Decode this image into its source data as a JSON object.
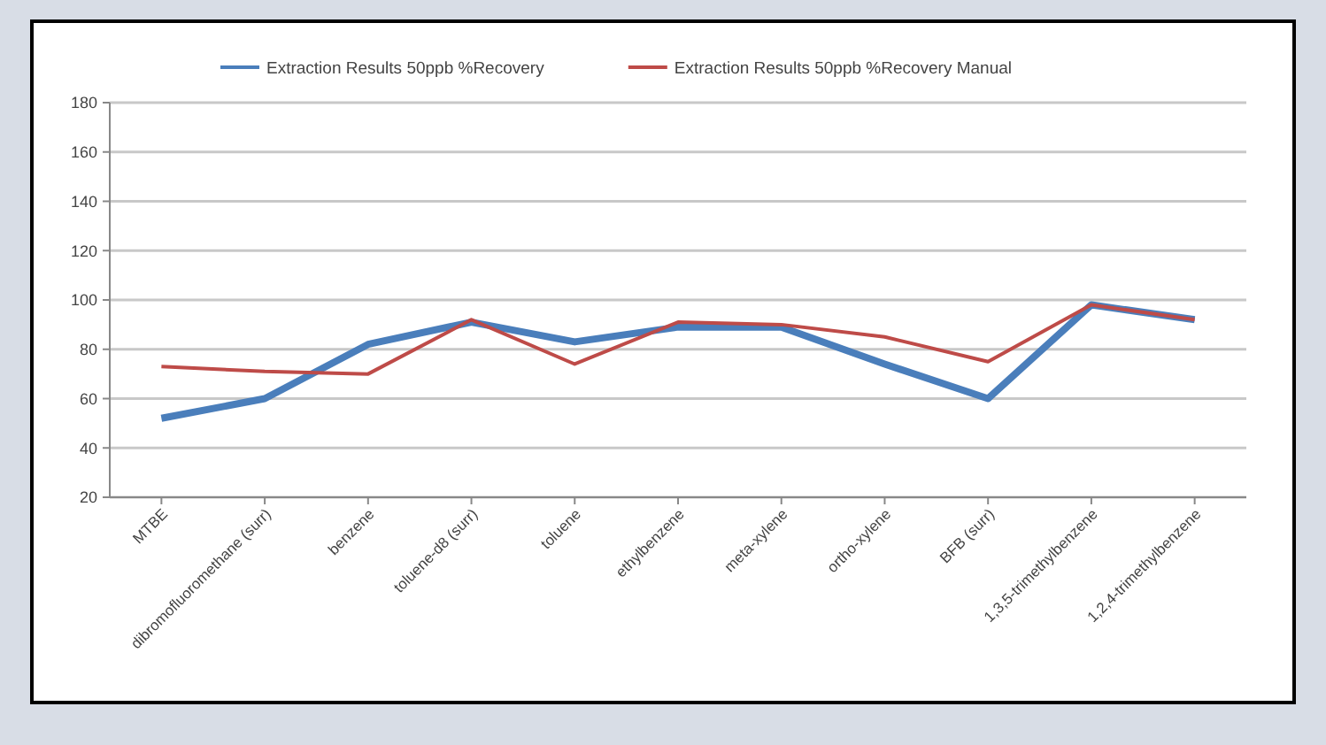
{
  "chart_data": {
    "type": "line",
    "categories": [
      "MTBE",
      "dibromofluoromethane (surr)",
      "benzene",
      "toluene-d8 (surr)",
      "toluene",
      "ethylbenzene",
      "meta-xylene",
      "ortho-xylene",
      "BFB (surr)",
      "1,3,5-trimethylbenzene",
      "1,2,4-trimethylbenzene"
    ],
    "series": [
      {
        "name": "Extraction Results 50ppb %Recovery",
        "color": "#4a7ebb",
        "values": [
          52,
          60,
          82,
          91,
          83,
          89,
          89,
          74,
          60,
          98,
          92
        ]
      },
      {
        "name": "Extraction Results 50ppb %Recovery Manual",
        "color": "#be4b48",
        "values": [
          73,
          71,
          70,
          92,
          74,
          91,
          90,
          85,
          75,
          98,
          92
        ]
      }
    ],
    "ylim": [
      20,
      180
    ],
    "yticks": [
      20,
      40,
      60,
      80,
      100,
      120,
      140,
      160,
      180
    ],
    "grid": "y",
    "legend": "top",
    "marker": "none",
    "line_style": "solid"
  }
}
